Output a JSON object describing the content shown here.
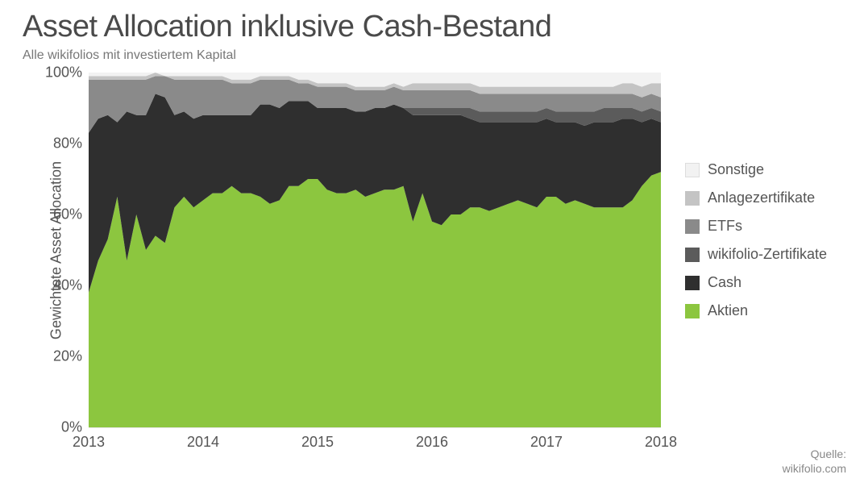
{
  "title": "Asset Allocation inklusive Cash-Bestand",
  "subtitle": "Alle wikifolios mit investiertem Kapital",
  "ylabel": "Gewichtete Asset Allocation",
  "source_label": "Quelle:",
  "source_value": "wikifolio.com",
  "chart": {
    "type": "stacked-area",
    "background_color": "#ffffff",
    "grid_color": "#e5e5e5",
    "axis_text_color": "#555555",
    "title_color": "#4a4a4a",
    "title_fontsize": 38,
    "subtitle_fontsize": 16,
    "label_fontsize": 18,
    "ylim": [
      0,
      100
    ],
    "ytick_step": 20,
    "ytick_suffix": "%",
    "x_years": [
      2013,
      2014,
      2015,
      2016,
      2017,
      2018
    ],
    "n_points": 61,
    "x_start_year": 2013,
    "x_end_year": 2018,
    "series": [
      {
        "key": "aktien",
        "label": "Aktien",
        "color": "#8cc63f"
      },
      {
        "key": "cash",
        "label": "Cash",
        "color": "#2f2f2f"
      },
      {
        "key": "wikifolio",
        "label": "wikifolio-Zertifikate",
        "color": "#5b5b5b"
      },
      {
        "key": "etfs",
        "label": "ETFs",
        "color": "#8a8a8a"
      },
      {
        "key": "anlagez",
        "label": "Anlagezertifikate",
        "color": "#c4c4c4"
      },
      {
        "key": "sonstige",
        "label": "Sonstige",
        "color": "#f2f2f2"
      }
    ],
    "data": {
      "aktien": [
        38,
        47,
        53,
        65,
        47,
        60,
        50,
        54,
        52,
        62,
        65,
        62,
        64,
        66,
        66,
        68,
        66,
        66,
        65,
        63,
        64,
        68,
        68,
        70,
        70,
        67,
        66,
        66,
        67,
        65,
        66,
        67,
        67,
        68,
        58,
        66,
        58,
        57,
        60,
        60,
        62,
        62,
        61,
        62,
        63,
        64,
        63,
        62,
        65,
        65,
        63,
        64,
        63,
        62,
        62,
        62,
        62,
        64,
        68,
        71,
        72
      ],
      "cash": [
        45,
        40,
        35,
        21,
        42,
        28,
        38,
        40,
        41,
        26,
        24,
        25,
        24,
        22,
        22,
        20,
        22,
        22,
        26,
        28,
        26,
        24,
        24,
        22,
        20,
        23,
        24,
        24,
        22,
        24,
        24,
        23,
        24,
        22,
        30,
        22,
        30,
        31,
        28,
        28,
        25,
        24,
        25,
        24,
        23,
        22,
        23,
        24,
        22,
        21,
        23,
        22,
        22,
        24,
        24,
        24,
        25,
        23,
        18,
        16,
        14
      ],
      "wikifolio": [
        0,
        0,
        0,
        0,
        0,
        0,
        0,
        0,
        0,
        0,
        0,
        0,
        0,
        0,
        0,
        0,
        0,
        0,
        0,
        0,
        0,
        0,
        0,
        0,
        0,
        0,
        0,
        0,
        0,
        0,
        0,
        0,
        0,
        0,
        2,
        2,
        2,
        2,
        2,
        2,
        3,
        3,
        3,
        3,
        3,
        3,
        3,
        3,
        3,
        3,
        3,
        3,
        4,
        3,
        4,
        4,
        3,
        3,
        3,
        3,
        3
      ],
      "etfs": [
        15,
        11,
        10,
        12,
        9,
        10,
        10,
        5,
        6,
        10,
        9,
        11,
        10,
        10,
        10,
        9,
        9,
        9,
        7,
        7,
        8,
        6,
        5,
        5,
        6,
        6,
        6,
        6,
        6,
        6,
        5,
        5,
        5,
        5,
        5,
        5,
        5,
        5,
        5,
        5,
        5,
        5,
        5,
        5,
        5,
        5,
        5,
        5,
        4,
        5,
        5,
        5,
        5,
        5,
        4,
        4,
        4,
        4,
        4,
        4,
        4
      ],
      "anlagez": [
        1,
        1,
        1,
        1,
        1,
        1,
        1,
        1,
        0,
        1,
        1,
        1,
        1,
        1,
        1,
        1,
        1,
        1,
        1,
        1,
        1,
        1,
        1,
        1,
        1,
        1,
        1,
        1,
        1,
        1,
        1,
        1,
        1,
        1,
        2,
        2,
        2,
        2,
        2,
        2,
        2,
        2,
        2,
        2,
        2,
        2,
        2,
        2,
        2,
        2,
        2,
        2,
        2,
        2,
        2,
        2,
        3,
        3,
        3,
        3,
        4
      ],
      "sonstige": [
        1,
        1,
        1,
        1,
        1,
        1,
        1,
        0,
        1,
        1,
        1,
        1,
        1,
        1,
        1,
        2,
        2,
        2,
        1,
        1,
        1,
        1,
        2,
        2,
        3,
        3,
        3,
        3,
        4,
        4,
        4,
        4,
        3,
        4,
        3,
        3,
        3,
        3,
        3,
        3,
        3,
        4,
        4,
        4,
        4,
        4,
        4,
        4,
        4,
        4,
        4,
        4,
        4,
        4,
        4,
        4,
        3,
        3,
        4,
        3,
        3
      ]
    }
  },
  "legend": {
    "order": [
      "sonstige",
      "anlagez",
      "etfs",
      "wikifolio",
      "cash",
      "aktien"
    ]
  }
}
